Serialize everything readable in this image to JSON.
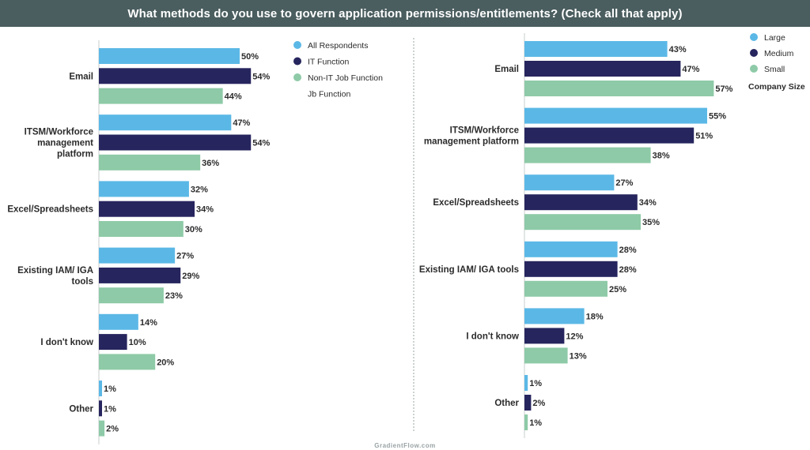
{
  "header": {
    "title": "What methods do you use to govern application permissions/entitlements? (Check all that apply)"
  },
  "footer": {
    "source": "GradientFlow.com"
  },
  "colors": {
    "light_blue": "#5bb8e6",
    "navy": "#26255e",
    "green": "#8ecaa7"
  },
  "chart_data": [
    {
      "type": "bar",
      "orientation": "horizontal",
      "categories": [
        [
          "Email"
        ],
        [
          "ITSM/Workforce",
          "management",
          "platform"
        ],
        [
          "Excel/Spreadsheets"
        ],
        [
          "Existing IAM/ IGA",
          "tools"
        ],
        [
          "I don't know"
        ],
        [
          "Other"
        ]
      ],
      "series": [
        {
          "name": "All Respondents",
          "color": "#5bb8e6",
          "values": [
            50,
            47,
            32,
            27,
            14,
            1
          ]
        },
        {
          "name": "IT Function",
          "color": "#26255e",
          "values": [
            54,
            54,
            34,
            29,
            10,
            1
          ]
        },
        {
          "name": "Non-IT Job Function",
          "color": "#8ecaa7",
          "values": [
            44,
            36,
            30,
            23,
            20,
            2
          ]
        }
      ],
      "legend_extra": "Jb Function",
      "value_suffix": "%",
      "xlim": [
        0,
        100
      ],
      "grid": false
    },
    {
      "type": "bar",
      "orientation": "horizontal",
      "categories": [
        [
          "Email"
        ],
        [
          "ITSM/Workforce",
          "management platform"
        ],
        [
          "Excel/Spreadsheets"
        ],
        [
          "Existing IAM/ IGA tools"
        ],
        [
          "I don't know"
        ],
        [
          "Other"
        ]
      ],
      "series": [
        {
          "name": "Large",
          "color": "#5bb8e6",
          "values": [
            43,
            55,
            27,
            28,
            18,
            1
          ]
        },
        {
          "name": "Medium",
          "color": "#26255e",
          "values": [
            47,
            51,
            34,
            28,
            12,
            2
          ]
        },
        {
          "name": "Small",
          "color": "#8ecaa7",
          "values": [
            57,
            38,
            35,
            25,
            13,
            1
          ]
        }
      ],
      "legend_title": "Company Size",
      "value_suffix": "%",
      "xlim": [
        0,
        100
      ],
      "grid": false
    }
  ]
}
